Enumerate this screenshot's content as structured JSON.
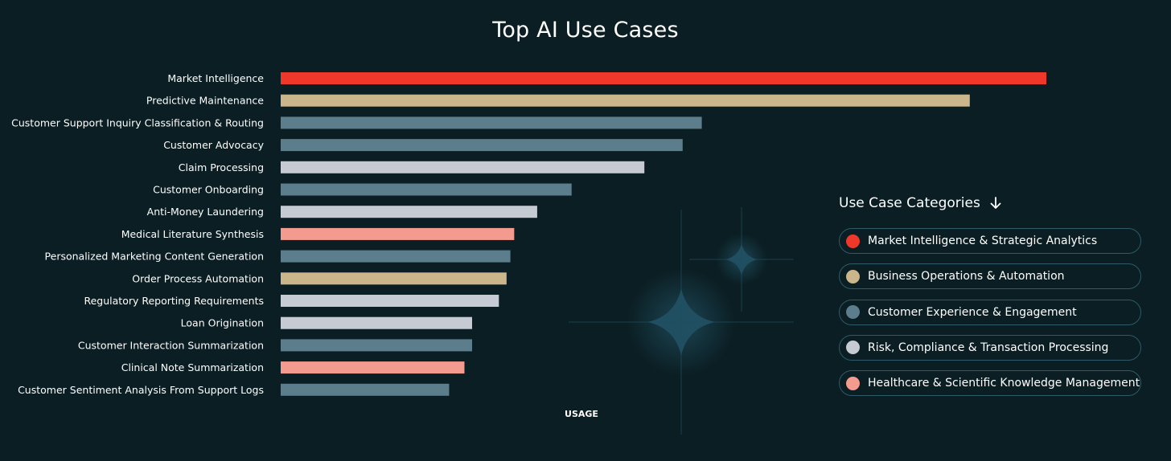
{
  "title": "Top AI Use Cases",
  "legend": {
    "heading": "Use Case Categories",
    "heading_icon": "arrow-down-icon",
    "items": [
      {
        "label": "Market Intelligence & Strategic Analytics",
        "color": "#f0382a"
      },
      {
        "label": "Business Operations & Automation",
        "color": "#cbb68c"
      },
      {
        "label": "Customer Experience & Engagement",
        "color": "#5c7d8b"
      },
      {
        "label": "Risk, Compliance & Transaction Processing",
        "color": "#c6cad3"
      },
      {
        "label": "Healthcare & Scientific Knowledge Management",
        "color": "#f49b8f"
      }
    ]
  },
  "chart_data": {
    "type": "bar",
    "orientation": "horizontal",
    "title": "Top AI Use Cases",
    "xlabel": "USAGE",
    "ylabel": "",
    "xlim": [
      0,
      100
    ],
    "grid": false,
    "legend_position": "right",
    "categories": [
      "Market Intelligence",
      "Predictive Maintenance",
      "Customer Support Inquiry Classification & Routing",
      "Customer Advocacy",
      "Claim Processing",
      "Customer Onboarding",
      "Anti-Money Laundering",
      "Medical Literature Synthesis",
      "Personalized Marketing Content Generation",
      "Order Process Automation",
      "Regulatory Reporting Requirements",
      "Loan Origination",
      "Customer Interaction Summarization",
      "Clinical Note Summarization",
      "Customer Sentiment Analysis From Support Logs"
    ],
    "values": [
      100,
      90,
      55,
      52.5,
      47.5,
      38,
      33.5,
      30.5,
      30,
      29.5,
      28.5,
      25,
      25,
      24,
      22
    ],
    "bar_categories": [
      "Market Intelligence & Strategic Analytics",
      "Business Operations & Automation",
      "Customer Experience & Engagement",
      "Customer Experience & Engagement",
      "Risk, Compliance & Transaction Processing",
      "Customer Experience & Engagement",
      "Risk, Compliance & Transaction Processing",
      "Healthcare & Scientific Knowledge Management",
      "Customer Experience & Engagement",
      "Business Operations & Automation",
      "Risk, Compliance & Transaction Processing",
      "Risk, Compliance & Transaction Processing",
      "Customer Experience & Engagement",
      "Healthcare & Scientific Knowledge Management",
      "Customer Experience & Engagement"
    ]
  }
}
